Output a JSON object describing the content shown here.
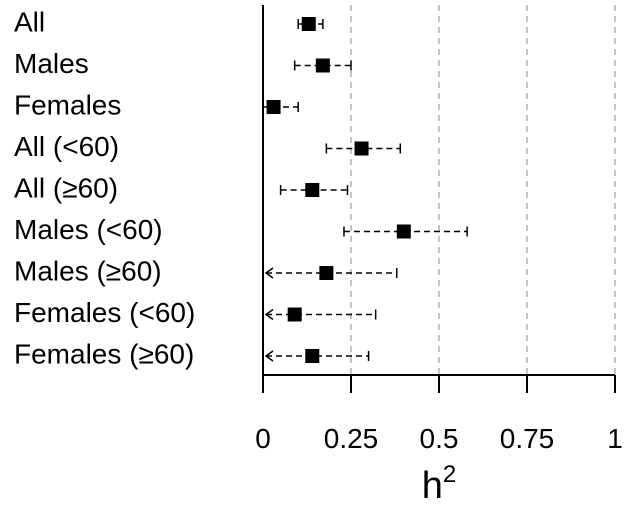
{
  "chart_data": {
    "type": "forest",
    "categories": [
      "All",
      "Males",
      "Females",
      "All (<60)",
      "All (≥60)",
      "Males (<60)",
      "Males (≥60)",
      "Females (<60)",
      "Females (≥60)"
    ],
    "estimates": [
      0.13,
      0.17,
      0.03,
      0.28,
      0.14,
      0.4,
      0.18,
      0.09,
      0.14
    ],
    "lower": [
      0.1,
      0.09,
      0.0,
      0.18,
      0.05,
      0.23,
      0.0,
      0.0,
      0.0
    ],
    "upper": [
      0.17,
      0.25,
      0.1,
      0.39,
      0.24,
      0.58,
      0.38,
      0.32,
      0.3
    ],
    "lower_truncated": [
      false,
      false,
      false,
      false,
      false,
      false,
      true,
      true,
      true
    ],
    "x_ticks": [
      0,
      0.25,
      0.5,
      0.75,
      1
    ],
    "x_tick_labels": [
      "0",
      "0.25",
      "0.5",
      "0.75",
      "1"
    ],
    "xlim": [
      0,
      1
    ],
    "xlabel_base": "h",
    "xlabel_sup": "2",
    "reference_lines": [
      0.25,
      0.5,
      0.75,
      1
    ],
    "grid": false
  }
}
